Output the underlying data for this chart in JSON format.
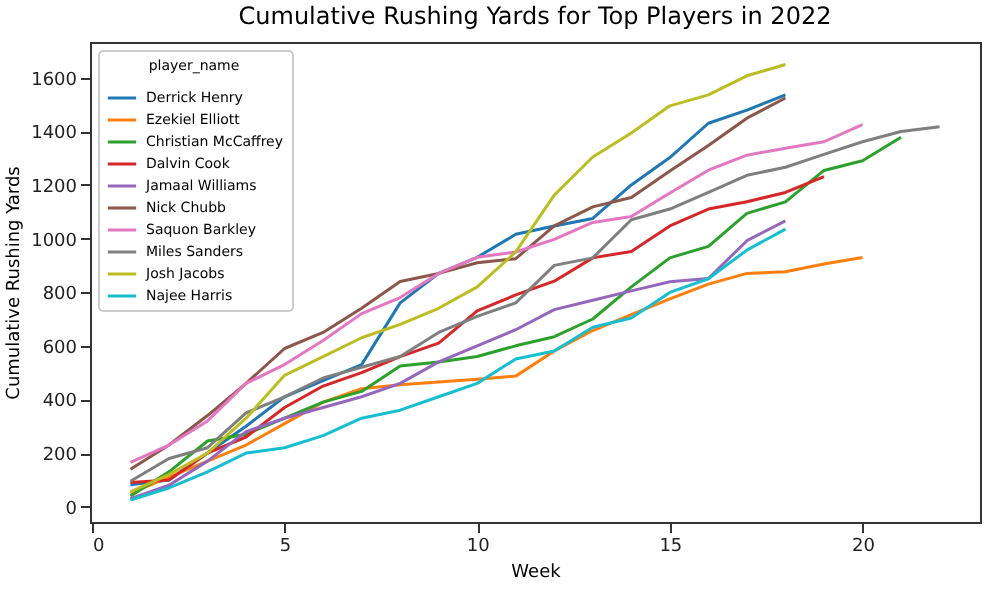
{
  "chart_data": {
    "type": "line",
    "title": "Cumulative Rushing Yards for Top Players in 2022",
    "xlabel": "Week",
    "ylabel": "Cumulative Rushing Yards",
    "legend_title": "player_name",
    "legend": "top left",
    "grid": false,
    "line_style": "solid",
    "marker": "none",
    "xlim": [
      -0.05,
      23.05
    ],
    "xticks": [
      0,
      5,
      10,
      15,
      20
    ],
    "ylim": [
      -57,
      1733
    ],
    "yticks": [
      0,
      200,
      400,
      600,
      800,
      1000,
      1200,
      1400,
      1600
    ],
    "series": [
      {
        "name": "Derrick Henry",
        "color": "#1f77b4",
        "x": [
          1,
          2,
          3,
          4,
          5,
          6,
          7,
          8,
          9,
          10,
          11,
          12,
          13,
          14,
          15,
          16,
          17,
          18
        ],
        "values": [
          82,
          100,
          200,
          300,
          410,
          470,
          530,
          760,
          870,
          930,
          1016,
          1047,
          1075,
          1200,
          1302,
          1430,
          1479,
          1536
        ]
      },
      {
        "name": "Ezekiel Elliott",
        "color": "#ff7f0e",
        "x": [
          1,
          2,
          3,
          4,
          5,
          6,
          7,
          8,
          9,
          10,
          11,
          12,
          13,
          14,
          15,
          16,
          17,
          18,
          19,
          20
        ],
        "values": [
          50,
          110,
          170,
          230,
          310,
          390,
          440,
          455,
          465,
          475,
          487,
          581,
          657,
          716,
          775,
          830,
          870,
          876,
          905,
          929
        ]
      },
      {
        "name": "Christian McCaffrey",
        "color": "#2ca02c",
        "x": [
          1,
          2,
          3,
          4,
          5,
          6,
          7,
          8,
          9,
          10,
          11,
          12,
          13,
          14,
          15,
          16,
          17,
          18,
          19,
          20,
          21
        ],
        "values": [
          40,
          130,
          245,
          270,
          330,
          390,
          430,
          525,
          540,
          560,
          600,
          634,
          700,
          820,
          928,
          971,
          1094,
          1137,
          1254,
          1290,
          1378
        ]
      },
      {
        "name": "Dalvin Cook",
        "color": "#d62728",
        "x": [
          1,
          2,
          3,
          4,
          5,
          6,
          7,
          8,
          9,
          10,
          11,
          12,
          13,
          14,
          15,
          16,
          17,
          18,
          19
        ],
        "values": [
          90,
          100,
          200,
          260,
          370,
          450,
          500,
          560,
          610,
          730,
          790,
          841,
          928,
          952,
          1047,
          1110,
          1137,
          1172,
          1231
        ]
      },
      {
        "name": "Jamaal Williams",
        "color": "#9467bd",
        "x": [
          1,
          2,
          3,
          4,
          5,
          6,
          7,
          8,
          9,
          10,
          11,
          12,
          13,
          14,
          15,
          16,
          17,
          18
        ],
        "values": [
          30,
          80,
          170,
          280,
          330,
          370,
          410,
          460,
          540,
          600,
          660,
          735,
          770,
          805,
          839,
          851,
          992,
          1066
        ]
      },
      {
        "name": "Nick Chubb",
        "color": "#8c564b",
        "x": [
          1,
          2,
          3,
          4,
          5,
          6,
          7,
          8,
          9,
          10,
          11,
          12,
          13,
          14,
          15,
          16,
          17,
          18
        ],
        "values": [
          140,
          230,
          340,
          460,
          590,
          650,
          740,
          840,
          870,
          910,
          925,
          1047,
          1118,
          1153,
          1252,
          1347,
          1449,
          1524
        ]
      },
      {
        "name": "Saquon Barkley",
        "color": "#e377c2",
        "x": [
          1,
          2,
          3,
          4,
          5,
          6,
          7,
          8,
          9,
          10,
          11,
          12,
          13,
          14,
          15,
          16,
          17,
          18,
          19,
          20
        ],
        "values": [
          165,
          230,
          320,
          460,
          530,
          620,
          720,
          780,
          870,
          930,
          950,
          997,
          1060,
          1082,
          1170,
          1255,
          1311,
          1337,
          1361,
          1425
        ]
      },
      {
        "name": "Miles Sanders",
        "color": "#7f7f7f",
        "x": [
          1,
          2,
          3,
          4,
          5,
          6,
          7,
          8,
          9,
          10,
          11,
          12,
          13,
          14,
          15,
          16,
          17,
          18,
          19,
          20,
          21,
          22
        ],
        "values": [
          95,
          180,
          220,
          350,
          410,
          480,
          520,
          560,
          650,
          710,
          760,
          900,
          928,
          1070,
          1110,
          1172,
          1236,
          1266,
          1314,
          1361,
          1399,
          1417
        ]
      },
      {
        "name": "Josh Jacobs",
        "color": "#bcbd22",
        "x": [
          1,
          2,
          3,
          4,
          5,
          6,
          7,
          8,
          9,
          10,
          11,
          12,
          13,
          14,
          15,
          16,
          17,
          18
        ],
        "values": [
          55,
          120,
          200,
          330,
          490,
          560,
          630,
          680,
          740,
          820,
          950,
          1162,
          1304,
          1394,
          1495,
          1536,
          1607,
          1649
        ]
      },
      {
        "name": "Najee Harris",
        "color": "#17becf",
        "x": [
          1,
          2,
          3,
          4,
          5,
          6,
          7,
          8,
          9,
          10,
          11,
          12,
          13,
          14,
          15,
          16,
          17,
          18
        ],
        "values": [
          25,
          70,
          130,
          200,
          220,
          265,
          330,
          360,
          410,
          460,
          551,
          581,
          669,
          704,
          799,
          850,
          957,
          1035
        ]
      }
    ]
  }
}
